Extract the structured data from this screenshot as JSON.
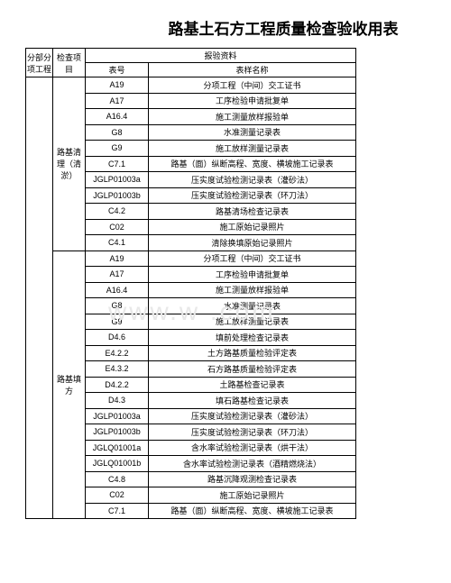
{
  "title": "路基土石方工程质量检查验收用表",
  "watermark": "www.w           .com",
  "headers": {
    "col1": "分部分项工程",
    "col2": "检查项目",
    "group": "报验资料",
    "col3": "表号",
    "col4": "表样名称"
  },
  "sections": [
    {
      "name": "路基清理（清淤）",
      "rows": [
        {
          "code": "A19",
          "name": "分项工程（中间）交工证书"
        },
        {
          "code": "A17",
          "name": "工序检验申请批复单"
        },
        {
          "code": "A16.4",
          "name": "施工测量放样报验单"
        },
        {
          "code": "G8",
          "name": "水准测量记录表"
        },
        {
          "code": "G9",
          "name": "施工放样测量记录表"
        },
        {
          "code": "C7.1",
          "name": "路基（面）纵断高程、宽度、横坡施工记录表"
        },
        {
          "code": "JGLP01003a",
          "name": "压实度试验检测记录表（灌砂法）"
        },
        {
          "code": "JGLP01003b",
          "name": "压实度试验检测记录表（环刀法）"
        },
        {
          "code": "C4.2",
          "name": "路基清场检查记录表"
        },
        {
          "code": "C02",
          "name": "施工原始记录照片"
        },
        {
          "code": "C4.1",
          "name": "清除换填原始记录照片"
        }
      ]
    },
    {
      "name": "路基填方",
      "rows": [
        {
          "code": "A19",
          "name": "分项工程（中间）交工证书"
        },
        {
          "code": "A17",
          "name": "工序检验申请批复单"
        },
        {
          "code": "A16.4",
          "name": "施工测量放样报验单"
        },
        {
          "code": "G8",
          "name": "水准测量记录表"
        },
        {
          "code": "G9",
          "name": "施工放样测量记录表"
        },
        {
          "code": "D4.6",
          "name": "填前处理检查记录表"
        },
        {
          "code": "E4.2.2",
          "name": "土方路基质量检验评定表"
        },
        {
          "code": "E4.3.2",
          "name": "石方路基质量检验评定表"
        },
        {
          "code": "D4.2.2",
          "name": "土路基检查记录表"
        },
        {
          "code": "D4.3",
          "name": "填石路基检查记录表"
        },
        {
          "code": "JGLP01003a",
          "name": "压实度试验检测记录表（灌砂法）"
        },
        {
          "code": "JGLP01003b",
          "name": "压实度试验检测记录表（环刀法）"
        },
        {
          "code": "JGLQ01001a",
          "name": "含水率试验检测记录表（烘干法）"
        },
        {
          "code": "JGLQ01001b",
          "name": "含水率试验检测记录表（酒精燃烧法）"
        },
        {
          "code": "C4.8",
          "name": "路基沉降观测检查记录表"
        },
        {
          "code": "C02",
          "name": "施工原始记录照片"
        },
        {
          "code": "C7.1",
          "name": "路基（面）纵断高程、宽度、横坡施工记录表"
        }
      ]
    }
  ]
}
